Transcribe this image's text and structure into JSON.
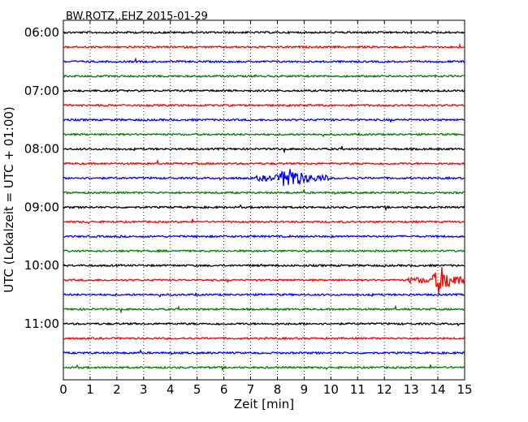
{
  "chart_data": {
    "type": "line",
    "title": "BW.ROTZ..EHZ 2015-01-29",
    "xlabel": "Zeit  [min]",
    "ylabel": "UTC (Lokalzeit = UTC + 01:00)",
    "xlim": [
      0,
      15
    ],
    "x_ticks": [
      "0",
      "1",
      "2",
      "3",
      "4",
      "5",
      "6",
      "7",
      "8",
      "9",
      "10",
      "11",
      "12",
      "13",
      "14",
      "15"
    ],
    "y_ticks": [
      "06:00",
      "07:00",
      "08:00",
      "09:00",
      "10:00",
      "11:00"
    ],
    "grid": "vertical dotted",
    "trace_colors": [
      "#000000",
      "#ff0000",
      "#0000ff",
      "#008000"
    ],
    "traces": [
      {
        "start": "06:00",
        "color": "#000000"
      },
      {
        "start": "06:15",
        "color": "#ff0000"
      },
      {
        "start": "06:30",
        "color": "#0000ff"
      },
      {
        "start": "06:45",
        "color": "#008000"
      },
      {
        "start": "07:00",
        "color": "#000000"
      },
      {
        "start": "07:15",
        "color": "#ff0000"
      },
      {
        "start": "07:30",
        "color": "#0000ff"
      },
      {
        "start": "07:45",
        "color": "#008000"
      },
      {
        "start": "08:00",
        "color": "#000000"
      },
      {
        "start": "08:15",
        "color": "#ff0000"
      },
      {
        "start": "08:30",
        "color": "#0000ff"
      },
      {
        "start": "08:45",
        "color": "#008000"
      },
      {
        "start": "09:00",
        "color": "#000000"
      },
      {
        "start": "09:15",
        "color": "#ff0000"
      },
      {
        "start": "09:30",
        "color": "#0000ff"
      },
      {
        "start": "09:45",
        "color": "#008000"
      },
      {
        "start": "10:00",
        "color": "#000000"
      },
      {
        "start": "10:15",
        "color": "#ff0000"
      },
      {
        "start": "10:30",
        "color": "#0000ff"
      },
      {
        "start": "10:45",
        "color": "#008000"
      },
      {
        "start": "11:00",
        "color": "#000000"
      },
      {
        "start": "11:15",
        "color": "#ff0000"
      },
      {
        "start": "11:30",
        "color": "#0000ff"
      },
      {
        "start": "11:45",
        "color": "#008000"
      }
    ],
    "events": [
      {
        "trace": "08:30",
        "t_min": 8.4,
        "peak": 0.9
      },
      {
        "trace": "10:15",
        "t_min": 14.1,
        "peak": 1.0
      }
    ]
  }
}
